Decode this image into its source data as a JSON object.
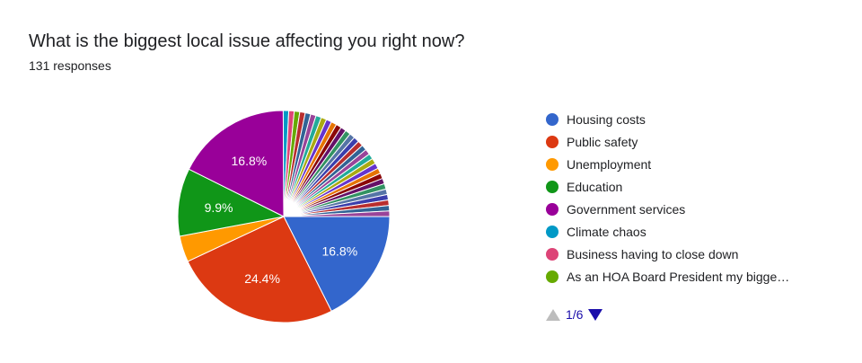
{
  "header": {
    "title": "What is the biggest local issue affecting you right now?",
    "responses": "131 responses"
  },
  "chart_data": {
    "type": "pie",
    "total_responses": 131,
    "categories": [
      "Housing costs",
      "Public safety",
      "Unemployment",
      "Education",
      "Government services",
      "Climate chaos",
      "Business having to close down",
      "As an HOA Board President my bigge…"
    ],
    "values": [
      16.8,
      24.4,
      3.8,
      9.9,
      16.8,
      0.8,
      0.8,
      0.8
    ],
    "data_labels": [
      "16.8%",
      "24.4%",
      "",
      "9.9%",
      "16.8%",
      "",
      "",
      ""
    ],
    "colors": [
      "#3366cc",
      "#dc3912",
      "#ff9900",
      "#109618",
      "#990099",
      "#0099c6",
      "#dd4477",
      "#66aa00"
    ],
    "other_slice_count": 27,
    "other_slice_value_each": 0.8,
    "other_colors": [
      "#b82e2e",
      "#316395",
      "#994499",
      "#22aa99",
      "#aaaa11",
      "#6633cc",
      "#e67300",
      "#8b0707",
      "#651067",
      "#329262",
      "#5574a6",
      "#3b3eac"
    ],
    "legend_position": "right"
  },
  "pager": {
    "page": "1/6"
  }
}
